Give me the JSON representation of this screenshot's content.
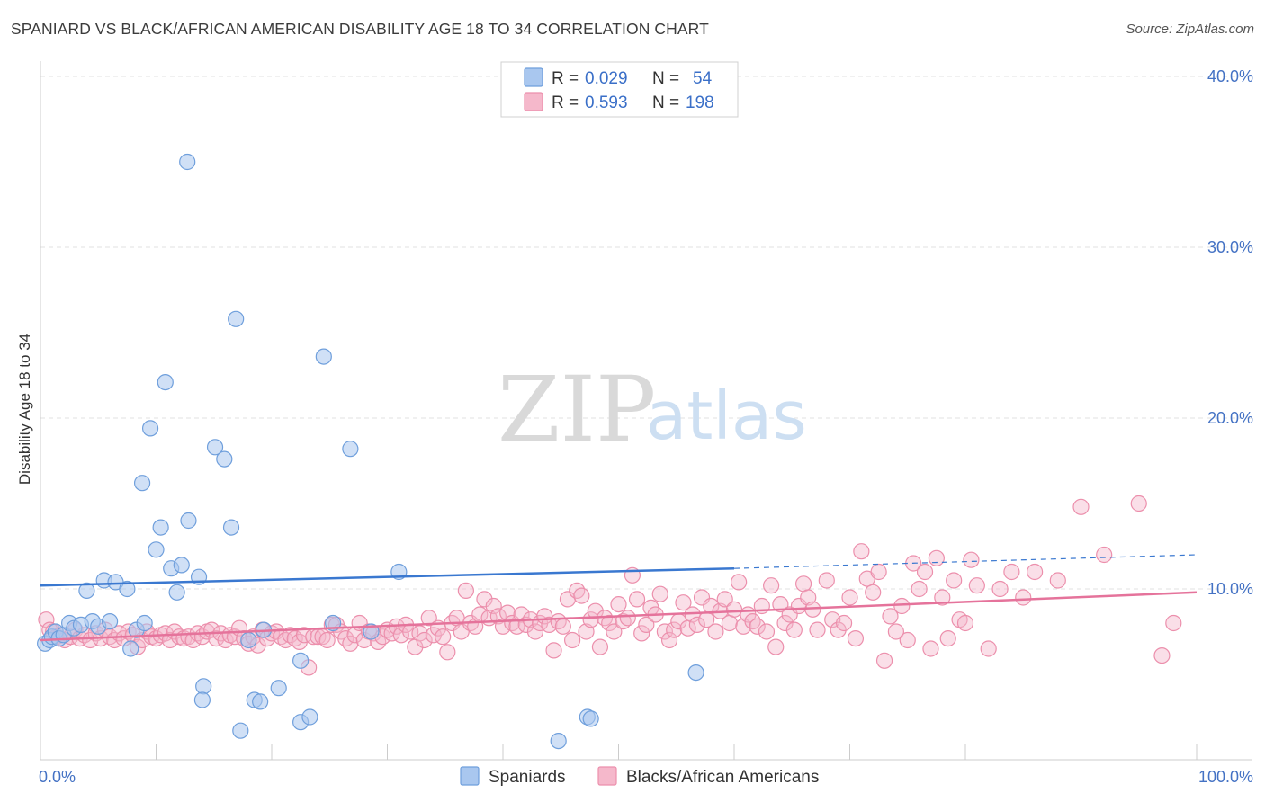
{
  "header": {
    "title": "SPANIARD VS BLACK/AFRICAN AMERICAN DISABILITY AGE 18 TO 34 CORRELATION CHART",
    "source": "Source: ZipAtlas.com"
  },
  "watermark": {
    "zip": "ZIP",
    "atlas": "atlas"
  },
  "colors": {
    "blue_fill": "#a9c7ef",
    "blue_stroke": "#6f9fdc",
    "blue_line": "#3a78d0",
    "pink_fill": "#f5b8cb",
    "pink_stroke": "#ec8fac",
    "pink_line": "#e5739b",
    "grid": "#e0e0e0",
    "tick_label": "#4472c4"
  },
  "legend": {
    "rows": [
      {
        "r_label": "R =",
        "r_value": "0.029",
        "n_label": "N =",
        "n_value": "54"
      },
      {
        "r_label": "R =",
        "r_value": "0.593",
        "n_label": "N =",
        "n_value": "198"
      }
    ]
  },
  "bottom_legend": [
    "Spaniards",
    "Blacks/African Americans"
  ],
  "chart_data": {
    "type": "scatter",
    "title": "SPANIARD VS BLACK/AFRICAN AMERICAN DISABILITY AGE 18 TO 34 CORRELATION CHART",
    "ylabel": "Disability Age 18 to 34",
    "xlim": [
      0,
      100
    ],
    "ylim": [
      0,
      40
    ],
    "y_ticks": [
      10,
      20,
      30,
      40
    ],
    "y_tick_labels": [
      "10.0%",
      "20.0%",
      "30.0%",
      "40.0%"
    ],
    "x_tick_labels": [
      "0.0%",
      "100.0%"
    ],
    "grid": "horizontal dashed",
    "legend_placement": "top-center",
    "series": [
      {
        "name": "Spaniards",
        "r": 0.029,
        "n": 54,
        "trend": {
          "x0": 0,
          "y0": 10.2,
          "x1": 60,
          "y1": 11.2,
          "dashed_to": 100,
          "dashed_y": 12.0
        },
        "points": [
          [
            0.4,
            6.8
          ],
          [
            0.8,
            7.0
          ],
          [
            1.0,
            7.2
          ],
          [
            1.3,
            7.5
          ],
          [
            1.6,
            7.1
          ],
          [
            2.0,
            7.3
          ],
          [
            2.5,
            8.0
          ],
          [
            2.9,
            7.7
          ],
          [
            3.5,
            7.9
          ],
          [
            4.0,
            9.9
          ],
          [
            4.5,
            8.1
          ],
          [
            5.0,
            7.8
          ],
          [
            5.5,
            10.5
          ],
          [
            6.0,
            8.1
          ],
          [
            6.5,
            10.4
          ],
          [
            7.5,
            10.0
          ],
          [
            7.8,
            6.5
          ],
          [
            8.3,
            7.6
          ],
          [
            9.0,
            8.0
          ],
          [
            8.8,
            16.2
          ],
          [
            9.5,
            19.4
          ],
          [
            10.0,
            12.3
          ],
          [
            10.4,
            13.6
          ],
          [
            10.8,
            22.1
          ],
          [
            11.3,
            11.2
          ],
          [
            11.8,
            9.8
          ],
          [
            12.2,
            11.4
          ],
          [
            12.7,
            35.0
          ],
          [
            12.8,
            14.0
          ],
          [
            13.7,
            10.7
          ],
          [
            14.1,
            4.3
          ],
          [
            14.0,
            3.5
          ],
          [
            15.1,
            18.3
          ],
          [
            15.9,
            17.6
          ],
          [
            16.5,
            13.6
          ],
          [
            16.9,
            25.8
          ],
          [
            17.3,
            1.7
          ],
          [
            18.0,
            7.0
          ],
          [
            18.5,
            3.5
          ],
          [
            19.0,
            3.4
          ],
          [
            19.3,
            7.6
          ],
          [
            20.6,
            4.2
          ],
          [
            22.5,
            5.8
          ],
          [
            22.5,
            2.2
          ],
          [
            23.3,
            2.5
          ],
          [
            24.5,
            23.6
          ],
          [
            25.3,
            8.0
          ],
          [
            26.8,
            18.2
          ],
          [
            28.6,
            7.5
          ],
          [
            31.0,
            11.0
          ],
          [
            44.8,
            1.1
          ],
          [
            47.3,
            2.5
          ],
          [
            47.6,
            2.4
          ],
          [
            56.7,
            5.1
          ]
        ]
      },
      {
        "name": "Blacks/African Americans",
        "r": 0.593,
        "n": 198,
        "trend": {
          "x0": 0,
          "y0": 7.0,
          "x1": 100,
          "y1": 9.8
        },
        "points": [
          [
            0.5,
            8.2
          ],
          [
            0.8,
            7.6
          ],
          [
            1.1,
            7.5
          ],
          [
            1.4,
            7.2
          ],
          [
            1.7,
            7.3
          ],
          [
            2.1,
            7.0
          ],
          [
            2.6,
            7.2
          ],
          [
            3.0,
            7.6
          ],
          [
            3.4,
            7.1
          ],
          [
            3.8,
            7.3
          ],
          [
            4.3,
            7.0
          ],
          [
            4.8,
            7.4
          ],
          [
            5.2,
            7.1
          ],
          [
            5.6,
            7.6
          ],
          [
            6.0,
            7.2
          ],
          [
            6.4,
            7.0
          ],
          [
            6.8,
            7.4
          ],
          [
            7.2,
            7.1
          ],
          [
            7.6,
            7.5
          ],
          [
            8.0,
            7.3
          ],
          [
            8.4,
            6.6
          ],
          [
            8.8,
            7.0
          ],
          [
            9.2,
            7.5
          ],
          [
            9.6,
            7.2
          ],
          [
            10.0,
            7.1
          ],
          [
            10.4,
            7.3
          ],
          [
            10.8,
            7.4
          ],
          [
            11.2,
            7.0
          ],
          [
            11.6,
            7.5
          ],
          [
            12.0,
            7.2
          ],
          [
            12.4,
            7.1
          ],
          [
            12.8,
            7.2
          ],
          [
            13.2,
            7.0
          ],
          [
            13.6,
            7.4
          ],
          [
            14.0,
            7.2
          ],
          [
            14.4,
            7.5
          ],
          [
            14.8,
            7.6
          ],
          [
            15.2,
            7.1
          ],
          [
            15.6,
            7.4
          ],
          [
            16.0,
            7.0
          ],
          [
            16.4,
            7.3
          ],
          [
            16.8,
            7.2
          ],
          [
            17.2,
            7.7
          ],
          [
            17.6,
            7.1
          ],
          [
            18.0,
            6.8
          ],
          [
            18.4,
            7.2
          ],
          [
            18.8,
            6.7
          ],
          [
            19.2,
            7.6
          ],
          [
            19.6,
            7.1
          ],
          [
            20.0,
            7.4
          ],
          [
            20.4,
            7.5
          ],
          [
            20.8,
            7.2
          ],
          [
            21.2,
            7.0
          ],
          [
            21.6,
            7.3
          ],
          [
            22.0,
            7.1
          ],
          [
            22.4,
            6.9
          ],
          [
            22.8,
            7.3
          ],
          [
            23.2,
            5.4
          ],
          [
            23.6,
            7.2
          ],
          [
            24.0,
            7.2
          ],
          [
            24.4,
            7.2
          ],
          [
            24.8,
            7.0
          ],
          [
            25.2,
            7.9
          ],
          [
            25.6,
            7.9
          ],
          [
            26.0,
            7.5
          ],
          [
            26.4,
            7.1
          ],
          [
            26.8,
            6.8
          ],
          [
            27.2,
            7.3
          ],
          [
            27.6,
            8.0
          ],
          [
            28.0,
            7.0
          ],
          [
            28.4,
            7.5
          ],
          [
            28.8,
            7.4
          ],
          [
            29.2,
            6.9
          ],
          [
            29.6,
            7.2
          ],
          [
            30.0,
            7.6
          ],
          [
            30.4,
            7.4
          ],
          [
            30.8,
            7.8
          ],
          [
            31.2,
            7.3
          ],
          [
            31.6,
            7.9
          ],
          [
            32.0,
            7.5
          ],
          [
            32.4,
            6.6
          ],
          [
            32.8,
            7.4
          ],
          [
            33.2,
            7.0
          ],
          [
            33.6,
            8.3
          ],
          [
            34.0,
            7.3
          ],
          [
            34.4,
            7.7
          ],
          [
            34.8,
            7.2
          ],
          [
            35.2,
            6.3
          ],
          [
            35.6,
            8.0
          ],
          [
            36.0,
            8.3
          ],
          [
            36.4,
            7.5
          ],
          [
            36.8,
            9.9
          ],
          [
            37.2,
            8.0
          ],
          [
            37.6,
            7.8
          ],
          [
            38.0,
            8.5
          ],
          [
            38.4,
            9.4
          ],
          [
            38.8,
            8.3
          ],
          [
            39.2,
            9.0
          ],
          [
            39.6,
            8.4
          ],
          [
            40.0,
            7.8
          ],
          [
            40.4,
            8.6
          ],
          [
            40.8,
            8.0
          ],
          [
            41.2,
            7.8
          ],
          [
            41.6,
            8.5
          ],
          [
            42.0,
            7.9
          ],
          [
            42.4,
            8.2
          ],
          [
            42.8,
            7.5
          ],
          [
            43.2,
            8.0
          ],
          [
            43.6,
            8.4
          ],
          [
            44.0,
            7.9
          ],
          [
            44.4,
            6.4
          ],
          [
            44.8,
            8.1
          ],
          [
            45.2,
            7.8
          ],
          [
            45.6,
            9.4
          ],
          [
            46.0,
            7.0
          ],
          [
            46.4,
            9.9
          ],
          [
            46.8,
            9.6
          ],
          [
            47.2,
            7.5
          ],
          [
            47.6,
            8.2
          ],
          [
            48.0,
            8.7
          ],
          [
            48.4,
            6.6
          ],
          [
            48.8,
            8.3
          ],
          [
            49.2,
            8.0
          ],
          [
            49.6,
            7.5
          ],
          [
            50.0,
            9.1
          ],
          [
            50.4,
            8.1
          ],
          [
            50.8,
            8.3
          ],
          [
            51.2,
            10.8
          ],
          [
            51.6,
            9.4
          ],
          [
            52.0,
            7.4
          ],
          [
            52.4,
            7.9
          ],
          [
            52.8,
            8.9
          ],
          [
            53.2,
            8.5
          ],
          [
            53.6,
            9.7
          ],
          [
            54.0,
            7.5
          ],
          [
            54.4,
            7.0
          ],
          [
            54.8,
            7.6
          ],
          [
            55.2,
            8.1
          ],
          [
            55.6,
            9.2
          ],
          [
            56.0,
            7.7
          ],
          [
            56.4,
            8.5
          ],
          [
            56.8,
            7.9
          ],
          [
            57.2,
            9.5
          ],
          [
            57.6,
            8.2
          ],
          [
            58.0,
            9.0
          ],
          [
            58.4,
            7.5
          ],
          [
            58.8,
            8.7
          ],
          [
            59.2,
            9.4
          ],
          [
            59.6,
            8.0
          ],
          [
            60.0,
            8.8
          ],
          [
            60.4,
            10.4
          ],
          [
            60.8,
            7.8
          ],
          [
            61.2,
            8.5
          ],
          [
            61.6,
            8.1
          ],
          [
            62.0,
            7.8
          ],
          [
            62.4,
            9.0
          ],
          [
            62.8,
            7.5
          ],
          [
            63.2,
            10.2
          ],
          [
            63.6,
            6.6
          ],
          [
            64.0,
            9.1
          ],
          [
            64.4,
            8.0
          ],
          [
            64.8,
            8.5
          ],
          [
            65.2,
            7.6
          ],
          [
            65.6,
            9.0
          ],
          [
            66.0,
            10.3
          ],
          [
            66.4,
            9.5
          ],
          [
            66.8,
            8.8
          ],
          [
            67.2,
            7.6
          ],
          [
            68.0,
            10.5
          ],
          [
            68.5,
            8.2
          ],
          [
            69.0,
            7.6
          ],
          [
            69.5,
            8.0
          ],
          [
            70.0,
            9.5
          ],
          [
            70.5,
            7.1
          ],
          [
            71.0,
            12.2
          ],
          [
            71.5,
            10.6
          ],
          [
            72.0,
            9.8
          ],
          [
            72.5,
            11.0
          ],
          [
            73.0,
            5.8
          ],
          [
            73.5,
            8.4
          ],
          [
            74.0,
            7.5
          ],
          [
            74.5,
            9.0
          ],
          [
            75.0,
            7.0
          ],
          [
            75.5,
            11.5
          ],
          [
            76.0,
            10.0
          ],
          [
            76.5,
            11.0
          ],
          [
            77.0,
            6.5
          ],
          [
            77.5,
            11.8
          ],
          [
            78.0,
            9.5
          ],
          [
            78.5,
            7.1
          ],
          [
            79.0,
            10.5
          ],
          [
            79.5,
            8.2
          ],
          [
            80.0,
            8.0
          ],
          [
            80.5,
            11.7
          ],
          [
            81.0,
            10.2
          ],
          [
            82.0,
            6.5
          ],
          [
            83.0,
            10.0
          ],
          [
            84.0,
            11.0
          ],
          [
            85.0,
            9.5
          ],
          [
            86.0,
            11.0
          ],
          [
            88.0,
            10.5
          ],
          [
            90.0,
            14.8
          ],
          [
            92.0,
            12.0
          ],
          [
            95.0,
            15.0
          ],
          [
            97.0,
            6.1
          ],
          [
            98.0,
            8.0
          ]
        ]
      }
    ]
  }
}
